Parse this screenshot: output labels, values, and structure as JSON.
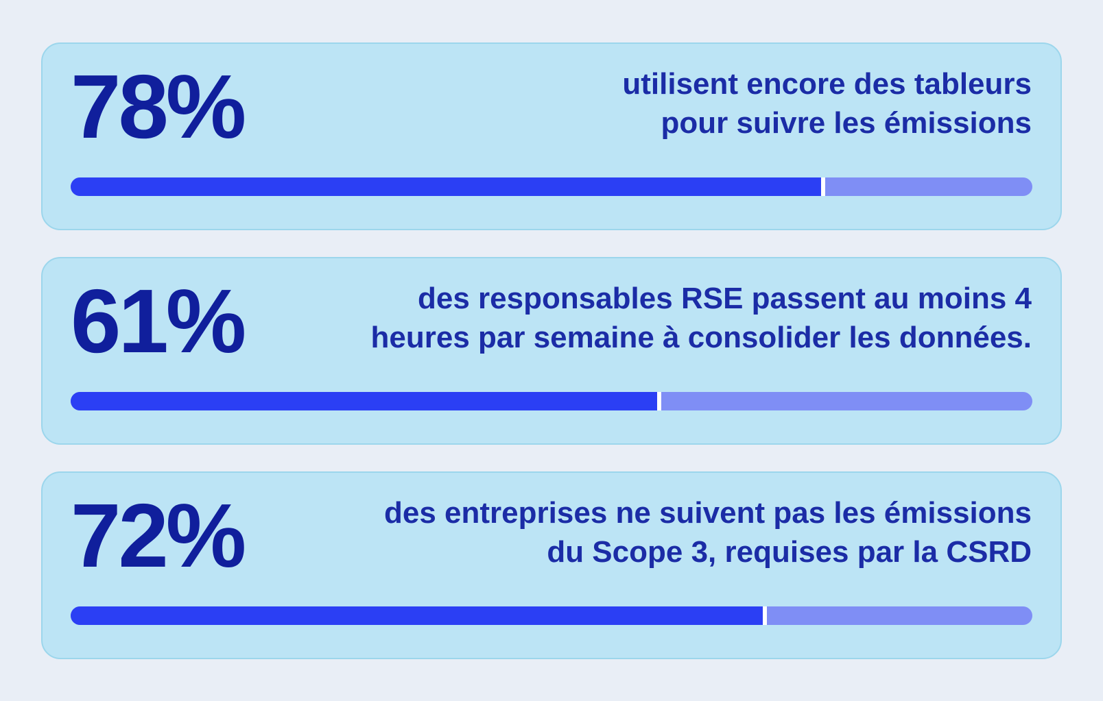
{
  "chart_data": {
    "type": "bar",
    "orientation": "horizontal",
    "unit": "%",
    "xlim": [
      0,
      100
    ],
    "categories": [
      "utilisent encore des tableurs pour suivre les émissions",
      "des responsables RSE passent au moins 4 heures par semaine à consolider les données.",
      "des entreprises ne suivent pas les émissions du Scope 3, requises par la CSRD"
    ],
    "values": [
      78,
      61,
      72
    ]
  },
  "theme": {
    "page_background": "#e9eef6",
    "card_background": "#bce4f5",
    "card_border": "#9cd6ec",
    "number_color": "#101f9c",
    "text_color": "#1b2ca6",
    "bar_fill_color": "#2b3ff4",
    "bar_track_color": "#7f8ef5",
    "bar_divider_color": "#ffffff"
  },
  "cards": [
    {
      "value": "78%",
      "percent": 78,
      "line1": "utilisent encore des tableurs",
      "line2": "pour suivre les émissions"
    },
    {
      "value": "61%",
      "percent": 61,
      "line1": "des responsables RSE passent au moins 4",
      "line2": "heures par semaine à consolider les données."
    },
    {
      "value": "72%",
      "percent": 72,
      "line1": "des entreprises ne suivent pas les émissions",
      "line2": "du Scope 3, requises par la CSRD"
    }
  ]
}
